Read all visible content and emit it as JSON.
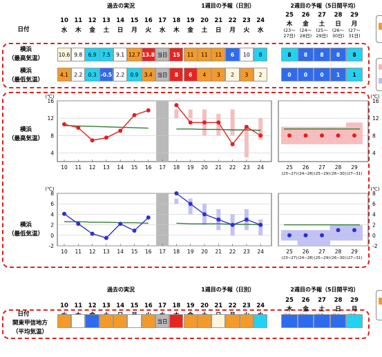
{
  "colors": {
    "red": "#e8241f",
    "orange": "#f39a2b",
    "beige": "#fdf6dc",
    "white": "#ffffff",
    "cyan": "#22d2f0",
    "blue": "#2f6bef",
    "gray": "#b9b9b9",
    "line_red": "#e51e1e",
    "line_blue": "#2f2fd0",
    "normal": "#2e7d32",
    "band_red": "#f5b7b7",
    "band_blue": "#bcbcf2"
  },
  "header": {
    "date_label": "日付",
    "past": "過去の実況",
    "week1": "1週目の予報（日別）",
    "week2": "2週目の予報（5日間平均）",
    "days": [
      {
        "d": "10",
        "w": "水"
      },
      {
        "d": "11",
        "w": "木"
      },
      {
        "d": "12",
        "w": "金"
      },
      {
        "d": "13",
        "w": "土"
      },
      {
        "d": "14",
        "w": "日"
      },
      {
        "d": "15",
        "w": "月"
      },
      {
        "d": "16",
        "w": "火"
      },
      {
        "d": "17",
        "w": "水"
      },
      {
        "d": "18",
        "w": "木"
      },
      {
        "d": "19",
        "w": "金"
      },
      {
        "d": "20",
        "w": "土"
      },
      {
        "d": "21",
        "w": "日"
      },
      {
        "d": "22",
        "w": "月"
      },
      {
        "d": "23",
        "w": "火"
      },
      {
        "d": "24",
        "w": "水"
      }
    ],
    "week2_days": [
      {
        "d": "25",
        "w": "木",
        "r1": "(23〜",
        "r2": "27日)"
      },
      {
        "d": "26",
        "w": "金",
        "r1": "(24〜",
        "r2": "28日)"
      },
      {
        "d": "27",
        "w": "土",
        "r1": "(25〜",
        "r2": "29日)"
      },
      {
        "d": "28",
        "w": "日",
        "r1": "(26〜",
        "r2": "30日)"
      },
      {
        "d": "29",
        "w": "月",
        "r1": "(27〜",
        "r2": "31日)"
      }
    ]
  },
  "table": {
    "max_label": [
      "横浜",
      "（最高気温）"
    ],
    "min_label": [
      "横浜",
      "（最低気温）"
    ],
    "max_values": [
      "10.6",
      "9.8",
      "6.9",
      "7.5",
      "9.1",
      "12.7",
      "13.8",
      "当日",
      "15",
      "11",
      "11",
      "11",
      "6",
      "10",
      "8"
    ],
    "max_colors": [
      "beige",
      "white",
      "cyan",
      "cyan",
      "white",
      "orange",
      "red",
      "gray",
      "red",
      "orange",
      "orange",
      "orange",
      "blue",
      "white",
      "cyan"
    ],
    "min_values": [
      "4.1",
      "2.2",
      "0.3",
      "-0.5",
      "2.2",
      "0.9",
      "3.4",
      "当日",
      "8",
      "6",
      "4",
      "3",
      "2",
      "3",
      "2"
    ],
    "min_colors": [
      "orange",
      "white",
      "cyan",
      "blue",
      "white",
      "cyan",
      "orange",
      "gray",
      "red",
      "red",
      "orange",
      "orange",
      "beige",
      "orange",
      "beige"
    ],
    "max_week2_values": [
      "8",
      "8",
      "8",
      "8",
      "8"
    ],
    "max_week2_colors": [
      "cyan",
      "blue",
      "blue",
      "blue",
      "cyan"
    ],
    "min_week2_values": [
      "0",
      "0",
      "0",
      "1",
      "1"
    ],
    "min_week2_colors": [
      "blue",
      "blue",
      "blue",
      "blue",
      "cyan"
    ]
  },
  "chart_data": [
    {
      "type": "line",
      "label": [
        "横浜",
        "（最高気温）"
      ],
      "unit": "(℃)",
      "ylim": [
        2,
        16
      ],
      "yticks": [
        4,
        8,
        12,
        16
      ],
      "x": [
        "10",
        "11",
        "12",
        "13",
        "14",
        "15",
        "16",
        "17",
        "18",
        "19",
        "20",
        "21",
        "22",
        "23",
        "24"
      ],
      "observed": [
        10.6,
        9.8,
        6.9,
        7.5,
        9.1,
        12.7,
        13.8,
        null,
        null,
        null,
        null,
        null,
        null,
        null,
        null
      ],
      "forecast": [
        null,
        null,
        null,
        null,
        null,
        null,
        null,
        null,
        15,
        11,
        11,
        11,
        6,
        10,
        8
      ],
      "forecast_range": [
        [
          12,
          14
        ],
        [
          12,
          14
        ],
        [
          8,
          14
        ],
        [
          8,
          13
        ],
        [
          8,
          14
        ],
        [
          3,
          10
        ],
        [
          7,
          12
        ],
        [
          6,
          12
        ]
      ],
      "normal": [
        10.3,
        10.2,
        10.1,
        10.0,
        9.9,
        9.8,
        9.7,
        9.6,
        9.5,
        9.5,
        9.4,
        9.4,
        9.3,
        9.3,
        9.2
      ],
      "week2_x": [
        "25",
        "26",
        "27",
        "28",
        "29"
      ],
      "week2_range_labels": [
        "(23−27)",
        "(24−28)",
        "(25−29)",
        "(26−30)",
        "(27−31)"
      ],
      "week2_values": [
        8,
        8,
        8,
        8,
        8
      ],
      "week2_range": [
        [
          6,
          10
        ],
        [
          6,
          10
        ],
        [
          6,
          10
        ],
        [
          6,
          10
        ],
        [
          6,
          11
        ]
      ],
      "week2_normal": [
        9.5,
        9.5,
        9.5,
        9.5,
        9.5
      ]
    },
    {
      "type": "line",
      "label": [
        "横浜",
        "（最低気温）"
      ],
      "unit": "(℃)",
      "ylim": [
        -2,
        8
      ],
      "yticks": [
        -2,
        0,
        2,
        4,
        6,
        8
      ],
      "x": [
        "10",
        "11",
        "12",
        "13",
        "14",
        "15",
        "16",
        "17",
        "18",
        "19",
        "20",
        "21",
        "22",
        "23",
        "24"
      ],
      "observed": [
        4.1,
        2.2,
        0.3,
        -0.5,
        2.2,
        0.9,
        3.4,
        null,
        null,
        null,
        null,
        null,
        null,
        null,
        null
      ],
      "forecast": [
        null,
        null,
        null,
        null,
        null,
        null,
        null,
        null,
        8,
        6,
        4,
        3,
        2,
        3,
        2
      ],
      "forecast_range": [
        [
          6,
          7
        ],
        [
          4,
          7
        ],
        [
          2,
          6
        ],
        [
          1,
          5
        ],
        [
          0,
          4
        ],
        [
          1,
          5
        ],
        [
          0,
          3
        ],
        [
          0,
          3
        ]
      ],
      "normal": [
        2.6,
        2.6,
        2.5,
        2.5,
        2.4,
        2.4,
        2.3,
        2.3,
        2.3,
        2.2,
        2.2,
        2.2,
        2.1,
        2.1,
        2.0
      ],
      "week2_x": [
        "25",
        "26",
        "27",
        "28",
        "29"
      ],
      "week2_range_labels": [
        "(23−27)",
        "(24−28)",
        "(25−29)",
        "(26−30)",
        "(27−31)"
      ],
      "week2_values": [
        0,
        0,
        0,
        1,
        1
      ],
      "week2_range": [
        [
          -1,
          1
        ],
        [
          -2,
          1
        ],
        [
          -2,
          1
        ],
        [
          -1,
          2
        ],
        [
          -1,
          2
        ]
      ],
      "week2_normal": [
        2,
        2,
        2,
        2,
        2
      ]
    }
  ],
  "bottom": {
    "past": "過去の実況",
    "week1": "1週目の予報（日別）",
    "week2": "2週目の予報（5日間平均）",
    "date_label": "日付",
    "region_label": [
      "関東甲信地方",
      "（平均気温）"
    ],
    "colors": [
      "orange",
      "white",
      "blue",
      "orange",
      "orange",
      "white",
      "orange",
      "gray",
      "red",
      "orange",
      "orange",
      "beige",
      "orange",
      "orange",
      "cyan"
    ],
    "texts": [
      "",
      "",
      "",
      "",
      "",
      "",
      "",
      "当日",
      "",
      "",
      "",
      "",
      "",
      "",
      ""
    ],
    "week2_colors": [
      "blue",
      "blue",
      "blue",
      "blue",
      "cyan"
    ]
  }
}
